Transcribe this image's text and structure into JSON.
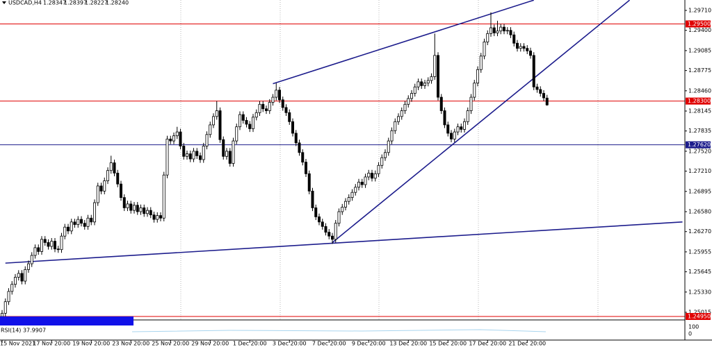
{
  "chart_data": {
    "type": "candlestick",
    "symbol": "USDCAD,H4",
    "last_labels": [
      "1.28347",
      "1.28397",
      "1.28227",
      "1.28240"
    ],
    "ylim": [
      1.24907,
      1.29872
    ],
    "yticks": [
      {
        "value": 1.2971,
        "label": "1.29710"
      },
      {
        "value": 1.294,
        "label": "1.29400"
      },
      {
        "value": 1.29085,
        "label": "1.29085"
      },
      {
        "value": 1.28775,
        "label": "1.28775"
      },
      {
        "value": 1.2846,
        "label": "1.28460"
      },
      {
        "value": 1.28145,
        "label": "1.28145"
      },
      {
        "value": 1.27835,
        "label": "1.27835"
      },
      {
        "value": 1.2752,
        "label": "1.27520"
      },
      {
        "value": 1.2721,
        "label": "1.27210"
      },
      {
        "value": 1.26895,
        "label": "1.26895"
      },
      {
        "value": 1.2658,
        "label": "1.26580"
      },
      {
        "value": 1.2627,
        "label": "1.26270"
      },
      {
        "value": 1.25955,
        "label": "1.25955"
      },
      {
        "value": 1.25645,
        "label": "1.25645"
      },
      {
        "value": 1.2533,
        "label": "1.25330"
      },
      {
        "value": 1.25015,
        "label": "1.25015"
      }
    ],
    "xticks": [
      {
        "value": 0,
        "label": "15 Nov 2021"
      },
      {
        "value": 15,
        "label": "17 Nov 20:00"
      },
      {
        "value": 27,
        "label": "19 Nov 20:00"
      },
      {
        "value": 39,
        "label": "23 Nov 20:00"
      },
      {
        "value": 51,
        "label": "25 Nov 20:00"
      },
      {
        "value": 63,
        "label": "29 Nov 20:00"
      },
      {
        "value": 75,
        "label": "1 Dec 20:00"
      },
      {
        "value": 87,
        "label": "3 Dec 20:00"
      },
      {
        "value": 99,
        "label": "7 Dec 20:00"
      },
      {
        "value": 111,
        "label": "9 Dec 20:00"
      },
      {
        "value": 123,
        "label": "13 Dec 20:00"
      },
      {
        "value": 135,
        "label": "15 Dec 20:00"
      },
      {
        "value": 147,
        "label": "17 Dec 20:00"
      },
      {
        "value": 159,
        "label": "21 Dec 20:00"
      }
    ],
    "levels": [
      {
        "value": 1.295,
        "label": "1.29500",
        "color": "#e00000"
      },
      {
        "value": 1.283,
        "label": "1.28300",
        "color": "#e00000"
      },
      {
        "value": 1.2762,
        "label": "1.27620",
        "color": "#1c1c8c"
      },
      {
        "value": 1.2495,
        "label": "1.24950",
        "color": "#e00000"
      }
    ],
    "trendlines": [
      {
        "from": [
          1,
          1.2578
        ],
        "to": [
          206,
          1.2642
        ],
        "color": "#1c1c8c"
      },
      {
        "from": [
          100,
          1.261
        ],
        "to": [
          190,
          1.2987
        ],
        "color": "#1c1c8c"
      },
      {
        "from": [
          82,
          1.2857
        ],
        "to": [
          161,
          1.2987
        ],
        "color": "#1c1c8c"
      }
    ],
    "indicator_label": "RSI(14) 37.9907",
    "indicator_ticks": [
      100,
      0
    ],
    "candles": [
      [
        1.2495,
        1.2505,
        1.249,
        1.25
      ],
      [
        1.25,
        1.2523,
        1.2495,
        1.2518
      ],
      [
        1.2518,
        1.2539,
        1.2513,
        1.2534
      ],
      [
        1.2534,
        1.255,
        1.2529,
        1.2545
      ],
      [
        1.2545,
        1.2561,
        1.254,
        1.2556
      ],
      [
        1.2556,
        1.2567,
        1.2551,
        1.2562
      ],
      [
        1.2562,
        1.2567,
        1.2545,
        1.255
      ],
      [
        1.255,
        1.2573,
        1.2545,
        1.2568
      ],
      [
        1.2568,
        1.2582,
        1.2563,
        1.2577
      ],
      [
        1.2577,
        1.2595,
        1.2572,
        1.259
      ],
      [
        1.259,
        1.2607,
        1.2585,
        1.2602
      ],
      [
        1.2602,
        1.2607,
        1.2591,
        1.2596
      ],
      [
        1.2596,
        1.262,
        1.2591,
        1.2615
      ],
      [
        1.2615,
        1.262,
        1.2605,
        1.261
      ],
      [
        1.261,
        1.2615,
        1.2599,
        1.2604
      ],
      [
        1.2604,
        1.2617,
        1.2599,
        1.2612
      ],
      [
        1.2612,
        1.2617,
        1.2595,
        1.26
      ],
      [
        1.26,
        1.2605,
        1.2594,
        1.2599
      ],
      [
        1.2599,
        1.2625,
        1.2594,
        1.262
      ],
      [
        1.262,
        1.2639,
        1.2615,
        1.2634
      ],
      [
        1.2634,
        1.2639,
        1.2623,
        1.2628
      ],
      [
        1.2628,
        1.2647,
        1.2623,
        1.2642
      ],
      [
        1.2642,
        1.2647,
        1.2633,
        1.2638
      ],
      [
        1.2638,
        1.2651,
        1.2633,
        1.2646
      ],
      [
        1.2646,
        1.2651,
        1.2635,
        1.264
      ],
      [
        1.264,
        1.2645,
        1.263,
        1.2635
      ],
      [
        1.2635,
        1.2653,
        1.263,
        1.2648
      ],
      [
        1.2648,
        1.2653,
        1.2637,
        1.2642
      ],
      [
        1.2642,
        1.2677,
        1.2637,
        1.2672
      ],
      [
        1.2672,
        1.2703,
        1.2667,
        1.2698
      ],
      [
        1.2698,
        1.2703,
        1.2685,
        1.269
      ],
      [
        1.269,
        1.2711,
        1.2685,
        1.2706
      ],
      [
        1.2706,
        1.2727,
        1.2701,
        1.2722
      ],
      [
        1.2722,
        1.2745,
        1.2717,
        1.2734
      ],
      [
        1.2734,
        1.2739,
        1.2713,
        1.2718
      ],
      [
        1.2718,
        1.2723,
        1.2696,
        1.2701
      ],
      [
        1.2701,
        1.2706,
        1.2675,
        1.268
      ],
      [
        1.268,
        1.2685,
        1.2659,
        1.2664
      ],
      [
        1.2664,
        1.2675,
        1.2659,
        1.267
      ],
      [
        1.267,
        1.2675,
        1.2655,
        1.266
      ],
      [
        1.266,
        1.2673,
        1.2655,
        1.2668
      ],
      [
        1.2668,
        1.2673,
        1.2653,
        1.2658
      ],
      [
        1.2658,
        1.2669,
        1.2653,
        1.2664
      ],
      [
        1.2664,
        1.2669,
        1.265,
        1.2655
      ],
      [
        1.2655,
        1.2665,
        1.265,
        1.266
      ],
      [
        1.266,
        1.2665,
        1.2648,
        1.2653
      ],
      [
        1.2653,
        1.2658,
        1.2641,
        1.2646
      ],
      [
        1.2646,
        1.2657,
        1.2641,
        1.2652
      ],
      [
        1.2652,
        1.2657,
        1.2643,
        1.2648
      ],
      [
        1.2648,
        1.272,
        1.2643,
        1.2715
      ],
      [
        1.2715,
        1.2776,
        1.271,
        1.2771
      ],
      [
        1.2771,
        1.2776,
        1.2763,
        1.2768
      ],
      [
        1.2768,
        1.2781,
        1.2763,
        1.2776
      ],
      [
        1.2776,
        1.279,
        1.2771,
        1.2782
      ],
      [
        1.2782,
        1.2787,
        1.2755,
        1.276
      ],
      [
        1.276,
        1.2765,
        1.2739,
        1.2744
      ],
      [
        1.2744,
        1.2753,
        1.2739,
        1.2748
      ],
      [
        1.2748,
        1.2753,
        1.2735,
        1.274
      ],
      [
        1.274,
        1.2757,
        1.2735,
        1.2752
      ],
      [
        1.2752,
        1.2757,
        1.274,
        1.2745
      ],
      [
        1.2745,
        1.275,
        1.2734,
        1.2739
      ],
      [
        1.2739,
        1.2765,
        1.2734,
        1.276
      ],
      [
        1.276,
        1.2783,
        1.2755,
        1.2778
      ],
      [
        1.2778,
        1.2798,
        1.2773,
        1.2793
      ],
      [
        1.2793,
        1.2811,
        1.2788,
        1.2806
      ],
      [
        1.2806,
        1.283,
        1.2801,
        1.2815
      ],
      [
        1.2815,
        1.282,
        1.2765,
        1.277
      ],
      [
        1.277,
        1.2775,
        1.2739,
        1.2744
      ],
      [
        1.2744,
        1.2757,
        1.2739,
        1.2752
      ],
      [
        1.2752,
        1.2757,
        1.2728,
        1.2733
      ],
      [
        1.2733,
        1.2773,
        1.2728,
        1.2768
      ],
      [
        1.2768,
        1.2795,
        1.2763,
        1.279
      ],
      [
        1.279,
        1.2814,
        1.2785,
        1.2809
      ],
      [
        1.2809,
        1.2814,
        1.2795,
        1.28
      ],
      [
        1.28,
        1.2805,
        1.2789,
        1.2794
      ],
      [
        1.2794,
        1.2799,
        1.2782,
        1.2787
      ],
      [
        1.2787,
        1.281,
        1.2782,
        1.2805
      ],
      [
        1.2805,
        1.2817,
        1.28,
        1.2812
      ],
      [
        1.2812,
        1.283,
        1.2807,
        1.2825
      ],
      [
        1.2825,
        1.283,
        1.2813,
        1.2818
      ],
      [
        1.2818,
        1.2823,
        1.281,
        1.2815
      ],
      [
        1.2815,
        1.2833,
        1.281,
        1.2828
      ],
      [
        1.2828,
        1.2841,
        1.2823,
        1.2836
      ],
      [
        1.2836,
        1.2858,
        1.2831,
        1.2847
      ],
      [
        1.2847,
        1.2852,
        1.2827,
        1.2832
      ],
      [
        1.2832,
        1.2837,
        1.2815,
        1.282
      ],
      [
        1.282,
        1.2825,
        1.2807,
        1.2812
      ],
      [
        1.2812,
        1.2817,
        1.2793,
        1.2798
      ],
      [
        1.2798,
        1.2803,
        1.2775,
        1.278
      ],
      [
        1.278,
        1.2785,
        1.276,
        1.2765
      ],
      [
        1.2765,
        1.277,
        1.2745,
        1.275
      ],
      [
        1.275,
        1.2755,
        1.273,
        1.2735
      ],
      [
        1.2735,
        1.274,
        1.2712,
        1.2717
      ],
      [
        1.2717,
        1.2722,
        1.2685,
        1.269
      ],
      [
        1.269,
        1.2695,
        1.2659,
        1.2664
      ],
      [
        1.2664,
        1.2669,
        1.2645,
        1.265
      ],
      [
        1.265,
        1.2655,
        1.2637,
        1.2642
      ],
      [
        1.2642,
        1.2647,
        1.263,
        1.2635
      ],
      [
        1.2635,
        1.264,
        1.2621,
        1.2626
      ],
      [
        1.2626,
        1.2631,
        1.2615,
        1.262
      ],
      [
        1.262,
        1.2625,
        1.2608,
        1.2615
      ],
      [
        1.2615,
        1.2645,
        1.261,
        1.264
      ],
      [
        1.264,
        1.2663,
        1.2635,
        1.2658
      ],
      [
        1.2658,
        1.267,
        1.2653,
        1.2665
      ],
      [
        1.2665,
        1.2679,
        1.266,
        1.2674
      ],
      [
        1.2674,
        1.2685,
        1.2669,
        1.268
      ],
      [
        1.268,
        1.2693,
        1.2675,
        1.2688
      ],
      [
        1.2688,
        1.2701,
        1.2683,
        1.2696
      ],
      [
        1.2696,
        1.2709,
        1.2691,
        1.2704
      ],
      [
        1.2704,
        1.2709,
        1.2695,
        1.27
      ],
      [
        1.27,
        1.2717,
        1.2695,
        1.2712
      ],
      [
        1.2712,
        1.2723,
        1.2707,
        1.2718
      ],
      [
        1.2718,
        1.2723,
        1.2705,
        1.271
      ],
      [
        1.271,
        1.2722,
        1.2705,
        1.2717
      ],
      [
        1.2717,
        1.2735,
        1.2712,
        1.273
      ],
      [
        1.273,
        1.2747,
        1.2725,
        1.2742
      ],
      [
        1.2742,
        1.2755,
        1.2737,
        1.275
      ],
      [
        1.275,
        1.2773,
        1.2745,
        1.2768
      ],
      [
        1.2768,
        1.2789,
        1.2763,
        1.2784
      ],
      [
        1.2784,
        1.2803,
        1.2779,
        1.2798
      ],
      [
        1.2798,
        1.2811,
        1.2793,
        1.2806
      ],
      [
        1.2806,
        1.282,
        1.2801,
        1.2815
      ],
      [
        1.2815,
        1.283,
        1.281,
        1.2825
      ],
      [
        1.2825,
        1.2839,
        1.282,
        1.2834
      ],
      [
        1.2834,
        1.2847,
        1.2829,
        1.2842
      ],
      [
        1.2842,
        1.2857,
        1.2837,
        1.2852
      ],
      [
        1.2852,
        1.2865,
        1.2847,
        1.286
      ],
      [
        1.286,
        1.2865,
        1.2849,
        1.2854
      ],
      [
        1.2854,
        1.2863,
        1.2849,
        1.2858
      ],
      [
        1.2858,
        1.2867,
        1.2853,
        1.2862
      ],
      [
        1.2862,
        1.2873,
        1.2857,
        1.2868
      ],
      [
        1.2868,
        1.2935,
        1.2863,
        1.2901
      ],
      [
        1.2901,
        1.2906,
        1.2831,
        1.2836
      ],
      [
        1.2836,
        1.2841,
        1.281,
        1.2815
      ],
      [
        1.2815,
        1.282,
        1.2788,
        1.2793
      ],
      [
        1.2793,
        1.2798,
        1.2775,
        1.278
      ],
      [
        1.278,
        1.2785,
        1.2766,
        1.2771
      ],
      [
        1.2771,
        1.2787,
        1.2766,
        1.2782
      ],
      [
        1.2782,
        1.2795,
        1.2777,
        1.279
      ],
      [
        1.279,
        1.2795,
        1.2781,
        1.2786
      ],
      [
        1.2786,
        1.2803,
        1.2781,
        1.2798
      ],
      [
        1.2798,
        1.282,
        1.2793,
        1.2815
      ],
      [
        1.2815,
        1.2841,
        1.281,
        1.2836
      ],
      [
        1.2836,
        1.2863,
        1.2831,
        1.2858
      ],
      [
        1.2858,
        1.2884,
        1.2853,
        1.2879
      ],
      [
        1.2879,
        1.2905,
        1.2874,
        1.29
      ],
      [
        1.29,
        1.2927,
        1.2895,
        1.2922
      ],
      [
        1.2922,
        1.294,
        1.2917,
        1.2935
      ],
      [
        1.2935,
        1.2968,
        1.293,
        1.2944
      ],
      [
        1.2944,
        1.2949,
        1.2931,
        1.2936
      ],
      [
        1.2936,
        1.2955,
        1.2931,
        1.2939
      ],
      [
        1.2939,
        1.295,
        1.2934,
        1.2945
      ],
      [
        1.2945,
        1.295,
        1.2934,
        1.2939
      ],
      [
        1.2939,
        1.2945,
        1.2934,
        1.294
      ],
      [
        1.294,
        1.2945,
        1.2928,
        1.2933
      ],
      [
        1.2933,
        1.2938,
        1.2915,
        1.292
      ],
      [
        1.292,
        1.2925,
        1.2907,
        1.2912
      ],
      [
        1.2912,
        1.292,
        1.2907,
        1.2915
      ],
      [
        1.2915,
        1.292,
        1.2907,
        1.2912
      ],
      [
        1.2912,
        1.2917,
        1.2903,
        1.2908
      ],
      [
        1.2908,
        1.2913,
        1.2896,
        1.2901
      ],
      [
        1.2901,
        1.2906,
        1.2847,
        1.2852
      ],
      [
        1.2852,
        1.2857,
        1.2843,
        1.2848
      ],
      [
        1.2848,
        1.2853,
        1.2837,
        1.2842
      ],
      [
        1.2842,
        1.2847,
        1.283,
        1.2835
      ],
      [
        1.28347,
        1.28397,
        1.28227,
        1.2824
      ]
    ]
  }
}
